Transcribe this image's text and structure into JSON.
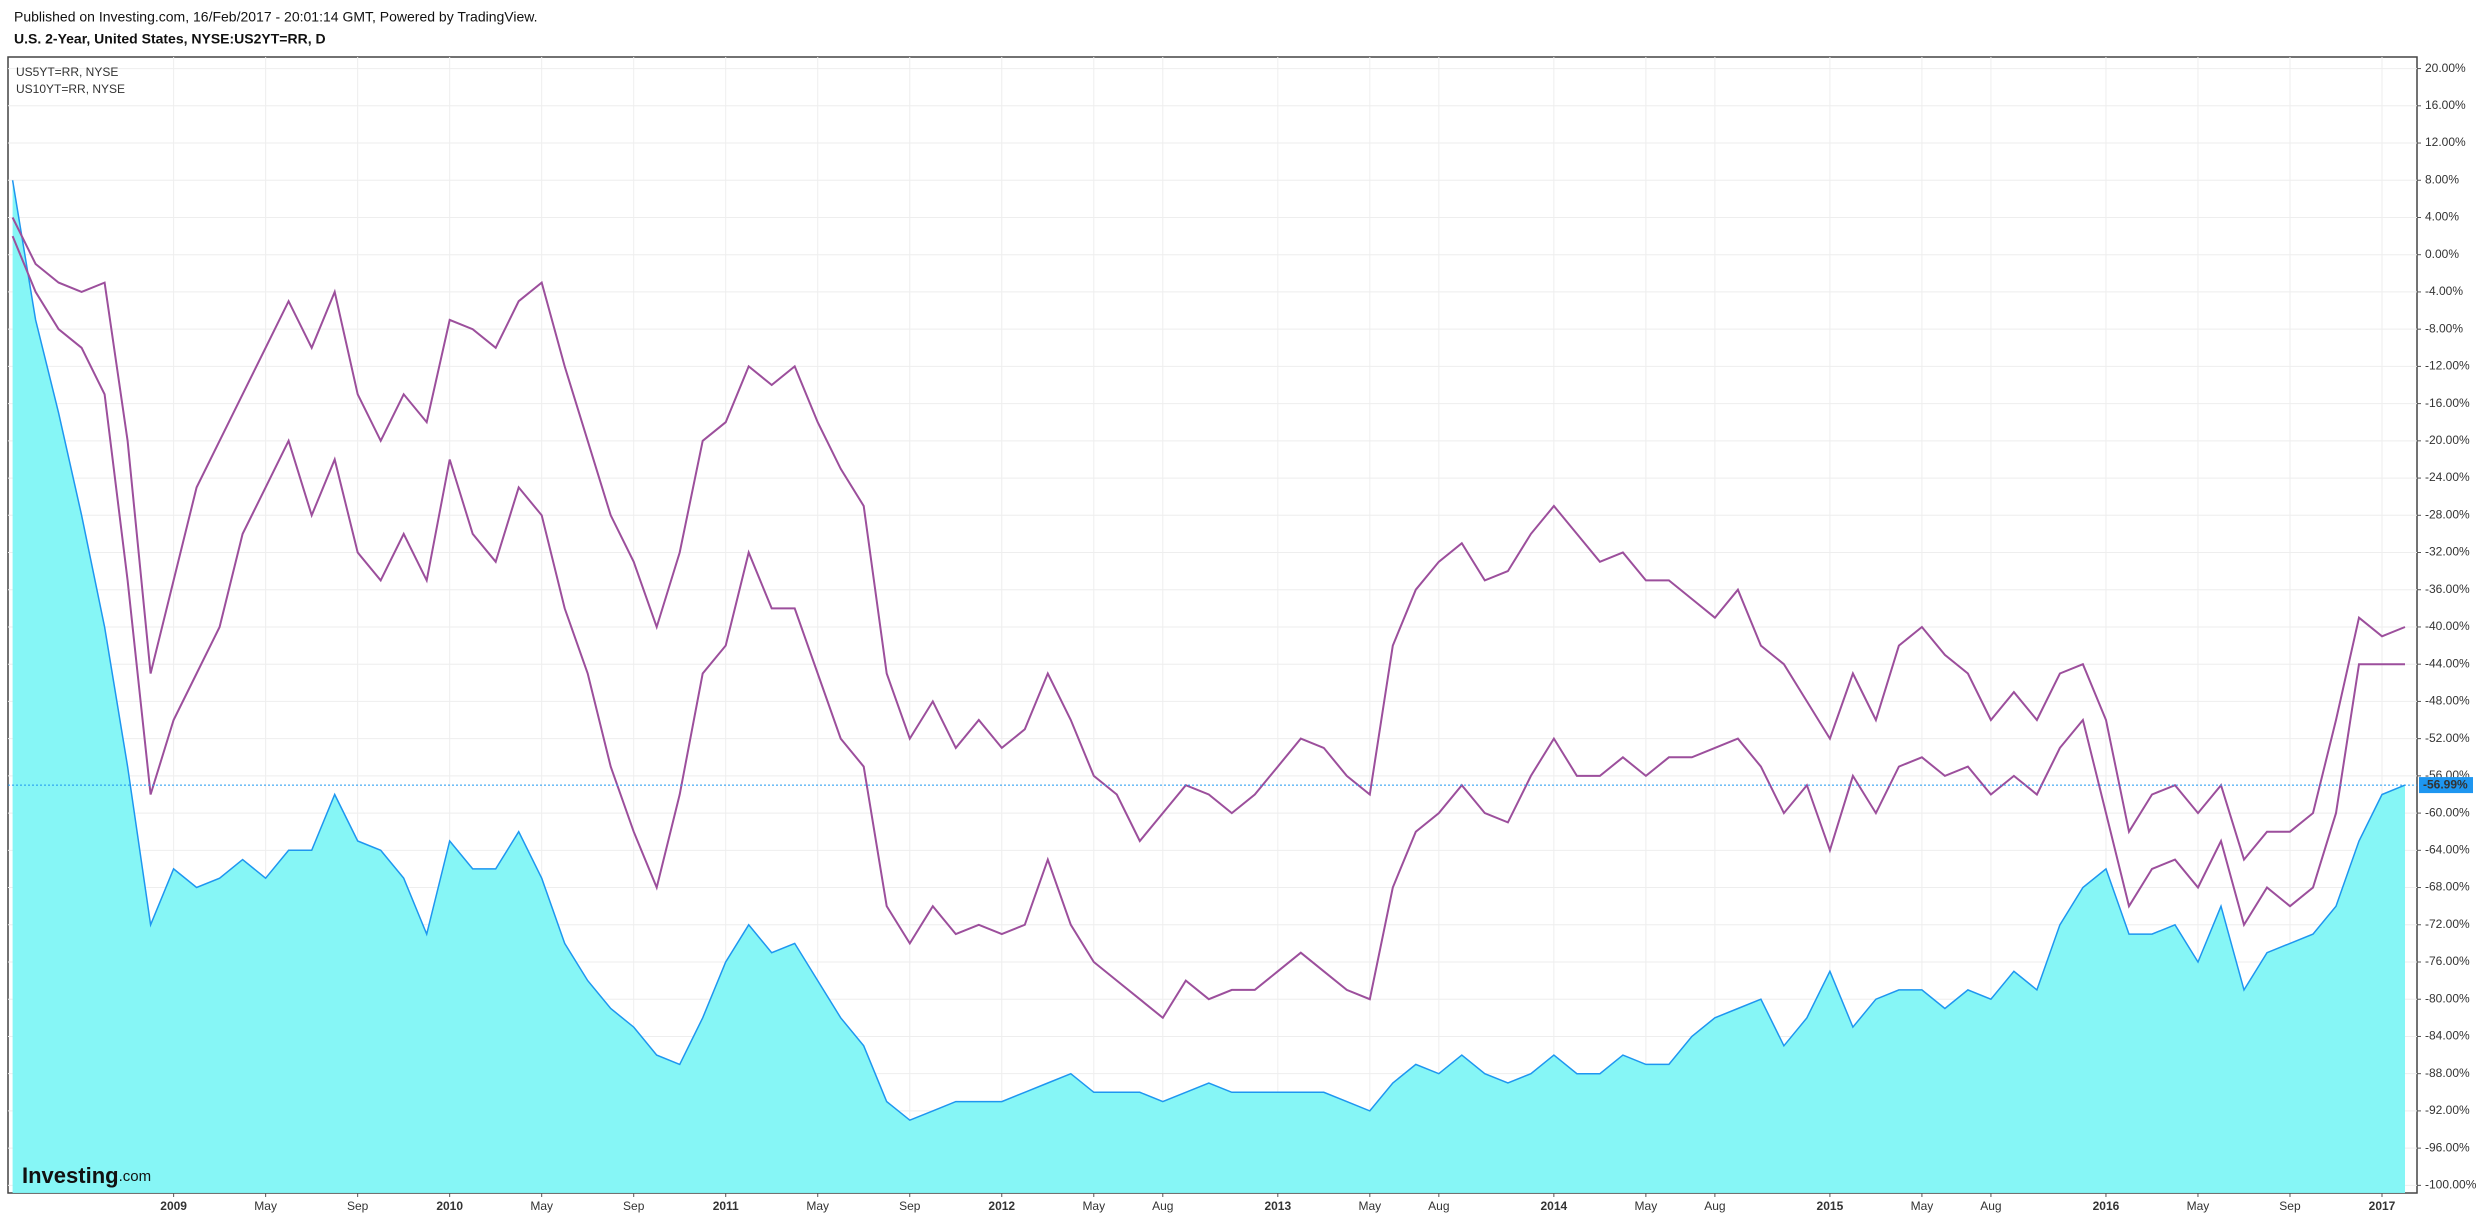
{
  "header": {
    "published": "Published on Investing.com, 16/Feb/2017 - 20:01:14 GMT, Powered by TradingView.",
    "symbol": "U.S. 2-Year, United States, NYSE:US2YT=RR, D"
  },
  "chart_data": {
    "type": "line",
    "categories": [
      "2008-06",
      "2008-07",
      "2008-08",
      "2008-09",
      "2008-10",
      "2008-11",
      "2008-12",
      "2009-01",
      "2009-02",
      "2009-03",
      "2009-04",
      "2009-05",
      "2009-06",
      "2009-07",
      "2009-08",
      "2009-09",
      "2009-10",
      "2009-11",
      "2009-12",
      "2010-01",
      "2010-02",
      "2010-03",
      "2010-04",
      "2010-05",
      "2010-06",
      "2010-07",
      "2010-08",
      "2010-09",
      "2010-10",
      "2010-11",
      "2010-12",
      "2011-01",
      "2011-02",
      "2011-03",
      "2011-04",
      "2011-05",
      "2011-06",
      "2011-07",
      "2011-08",
      "2011-09",
      "2011-10",
      "2011-11",
      "2011-12",
      "2012-01",
      "2012-02",
      "2012-03",
      "2012-04",
      "2012-05",
      "2012-06",
      "2012-07",
      "2012-08",
      "2012-09",
      "2012-10",
      "2012-11",
      "2012-12",
      "2013-01",
      "2013-02",
      "2013-03",
      "2013-04",
      "2013-05",
      "2013-06",
      "2013-07",
      "2013-08",
      "2013-09",
      "2013-10",
      "2013-11",
      "2013-12",
      "2014-01",
      "2014-02",
      "2014-03",
      "2014-04",
      "2014-05",
      "2014-06",
      "2014-07",
      "2014-08",
      "2014-09",
      "2014-10",
      "2014-11",
      "2014-12",
      "2015-01",
      "2015-02",
      "2015-03",
      "2015-04",
      "2015-05",
      "2015-06",
      "2015-07",
      "2015-08",
      "2015-09",
      "2015-10",
      "2015-11",
      "2015-12",
      "2016-01",
      "2016-02",
      "2016-03",
      "2016-04",
      "2016-05",
      "2016-06",
      "2016-07",
      "2016-08",
      "2016-09",
      "2016-10",
      "2016-11",
      "2016-12",
      "2017-01",
      "2017-02"
    ],
    "series": [
      {
        "name": "U.S. 2-Year",
        "color": "#1e96f0",
        "fill": "#80f6f6",
        "area": true,
        "values": [
          8,
          -7,
          -17,
          -28,
          -40,
          -55,
          -72,
          -66,
          -68,
          -67,
          -65,
          -67,
          -64,
          -64,
          -58,
          -63,
          -64,
          -67,
          -73,
          -63,
          -66,
          -66,
          -62,
          -67,
          -74,
          -78,
          -81,
          -83,
          -86,
          -87,
          -82,
          -76,
          -72,
          -75,
          -74,
          -78,
          -82,
          -85,
          -91,
          -93,
          -92,
          -91,
          -91,
          -91,
          -90,
          -89,
          -88,
          -90,
          -90,
          -90,
          -91,
          -90,
          -89,
          -90,
          -90,
          -90,
          -90,
          -90,
          -91,
          -92,
          -89,
          -87,
          -88,
          -86,
          -88,
          -89,
          -88,
          -86,
          -88,
          -88,
          -86,
          -87,
          -87,
          -84,
          -82,
          -81,
          -80,
          -85,
          -82,
          -77,
          -83,
          -80,
          -79,
          -79,
          -81,
          -79,
          -80,
          -77,
          -79,
          -72,
          -68,
          -66,
          -73,
          -73,
          -72,
          -76,
          -70,
          -79,
          -75,
          -74,
          -73,
          -70,
          -63,
          -58,
          -56.99
        ],
        "last_label": "-56.99%"
      },
      {
        "name": "US5YT=RR, NYSE",
        "color": "#9c4f9c",
        "values": [
          2,
          -4,
          -8,
          -10,
          -15,
          -35,
          -58,
          -50,
          -45,
          -40,
          -30,
          -25,
          -20,
          -28,
          -22,
          -32,
          -35,
          -30,
          -35,
          -22,
          -30,
          -33,
          -25,
          -28,
          -38,
          -45,
          -55,
          -62,
          -68,
          -58,
          -45,
          -42,
          -32,
          -38,
          -38,
          -45,
          -52,
          -55,
          -70,
          -74,
          -70,
          -73,
          -72,
          -73,
          -72,
          -65,
          -72,
          -76,
          -78,
          -80,
          -82,
          -78,
          -80,
          -79,
          -79,
          -77,
          -75,
          -77,
          -79,
          -80,
          -68,
          -62,
          -60,
          -57,
          -60,
          -61,
          -56,
          -52,
          -56,
          -56,
          -54,
          -56,
          -54,
          -54,
          -53,
          -52,
          -55,
          -60,
          -57,
          -64,
          -56,
          -60,
          -55,
          -54,
          -56,
          -55,
          -58,
          -56,
          -58,
          -53,
          -50,
          -60,
          -70,
          -66,
          -65,
          -68,
          -63,
          -72,
          -68,
          -70,
          -68,
          -60,
          -44,
          -44,
          -44
        ]
      },
      {
        "name": "US10YT=RR, NYSE",
        "color": "#9c4f9c",
        "values": [
          4,
          -1,
          -3,
          -4,
          -3,
          -20,
          -45,
          -35,
          -25,
          -20,
          -15,
          -10,
          -5,
          -10,
          -4,
          -15,
          -20,
          -15,
          -18,
          -7,
          -8,
          -10,
          -5,
          -3,
          -12,
          -20,
          -28,
          -33,
          -40,
          -32,
          -20,
          -18,
          -12,
          -14,
          -12,
          -18,
          -23,
          -27,
          -45,
          -52,
          -48,
          -53,
          -50,
          -53,
          -51,
          -45,
          -50,
          -56,
          -58,
          -63,
          -60,
          -57,
          -58,
          -60,
          -58,
          -55,
          -52,
          -53,
          -56,
          -58,
          -42,
          -36,
          -33,
          -31,
          -35,
          -34,
          -30,
          -27,
          -30,
          -33,
          -32,
          -35,
          -35,
          -37,
          -39,
          -36,
          -42,
          -44,
          -48,
          -52,
          -45,
          -50,
          -42,
          -40,
          -43,
          -45,
          -50,
          -47,
          -50,
          -45,
          -44,
          -50,
          -62,
          -58,
          -57,
          -60,
          -57,
          -65,
          -62,
          -62,
          -60,
          -50,
          -39,
          -41,
          -40
        ]
      }
    ],
    "ylim": [
      -100.5,
      20.6
    ],
    "yticks": [
      {
        "value": 20,
        "label": "20.00%"
      },
      {
        "value": 16,
        "label": "16.00%"
      },
      {
        "value": 12,
        "label": "12.00%"
      },
      {
        "value": 8,
        "label": "8.00%"
      },
      {
        "value": 4,
        "label": "4.00%"
      },
      {
        "value": 0,
        "label": "0.00%"
      },
      {
        "value": -4,
        "label": "-4.00%"
      },
      {
        "value": -8,
        "label": "-8.00%"
      },
      {
        "value": -12,
        "label": "-12.00%"
      },
      {
        "value": -16,
        "label": "-16.00%"
      },
      {
        "value": -20,
        "label": "-20.00%"
      },
      {
        "value": -24,
        "label": "-24.00%"
      },
      {
        "value": -28,
        "label": "-28.00%"
      },
      {
        "value": -32,
        "label": "-32.00%"
      },
      {
        "value": -36,
        "label": "-36.00%"
      },
      {
        "value": -40,
        "label": "-40.00%"
      },
      {
        "value": -44,
        "label": "-44.00%"
      },
      {
        "value": -48,
        "label": "-48.00%"
      },
      {
        "value": -52,
        "label": "-52.00%"
      },
      {
        "value": -56,
        "label": "-56.00%"
      },
      {
        "value": -60,
        "label": "-60.00%"
      },
      {
        "value": -64,
        "label": "-64.00%"
      },
      {
        "value": -68,
        "label": "-68.00%"
      },
      {
        "value": -72,
        "label": "-72.00%"
      },
      {
        "value": -76,
        "label": "-76.00%"
      },
      {
        "value": -80,
        "label": "-80.00%"
      },
      {
        "value": -84,
        "label": "-84.00%"
      },
      {
        "value": -88,
        "label": "-88.00%"
      },
      {
        "value": -92,
        "label": "-92.00%"
      },
      {
        "value": -96,
        "label": "-96.00%"
      },
      {
        "value": -100,
        "label": "-100.00%"
      }
    ],
    "xticks": [
      {
        "value": "2009-01",
        "label": "2009"
      },
      {
        "value": "2009-05",
        "label": "May"
      },
      {
        "value": "2009-09",
        "label": "Sep"
      },
      {
        "value": "2010-01",
        "label": "2010"
      },
      {
        "value": "2010-05",
        "label": "May"
      },
      {
        "value": "2010-09",
        "label": "Sep"
      },
      {
        "value": "2011-01",
        "label": "2011"
      },
      {
        "value": "2011-05",
        "label": "May"
      },
      {
        "value": "2011-09",
        "label": "Sep"
      },
      {
        "value": "2012-01",
        "label": "2012"
      },
      {
        "value": "2012-05",
        "label": "May"
      },
      {
        "value": "2012-08",
        "label": "Aug"
      },
      {
        "value": "2013-01",
        "label": "2013"
      },
      {
        "value": "2013-05",
        "label": "May"
      },
      {
        "value": "2013-08",
        "label": "Aug"
      },
      {
        "value": "2014-01",
        "label": "2014"
      },
      {
        "value": "2014-05",
        "label": "May"
      },
      {
        "value": "2014-08",
        "label": "Aug"
      },
      {
        "value": "2015-01",
        "label": "2015"
      },
      {
        "value": "2015-05",
        "label": "May"
      },
      {
        "value": "2015-08",
        "label": "Aug"
      },
      {
        "value": "2016-01",
        "label": "2016"
      },
      {
        "value": "2016-05",
        "label": "May"
      },
      {
        "value": "2016-09",
        "label": "Sep"
      },
      {
        "value": "2017-01",
        "label": "2017"
      }
    ],
    "grid": true,
    "legend_position": "top-left",
    "watermark": {
      "brand": "Investing",
      "suffix": ".com"
    }
  }
}
